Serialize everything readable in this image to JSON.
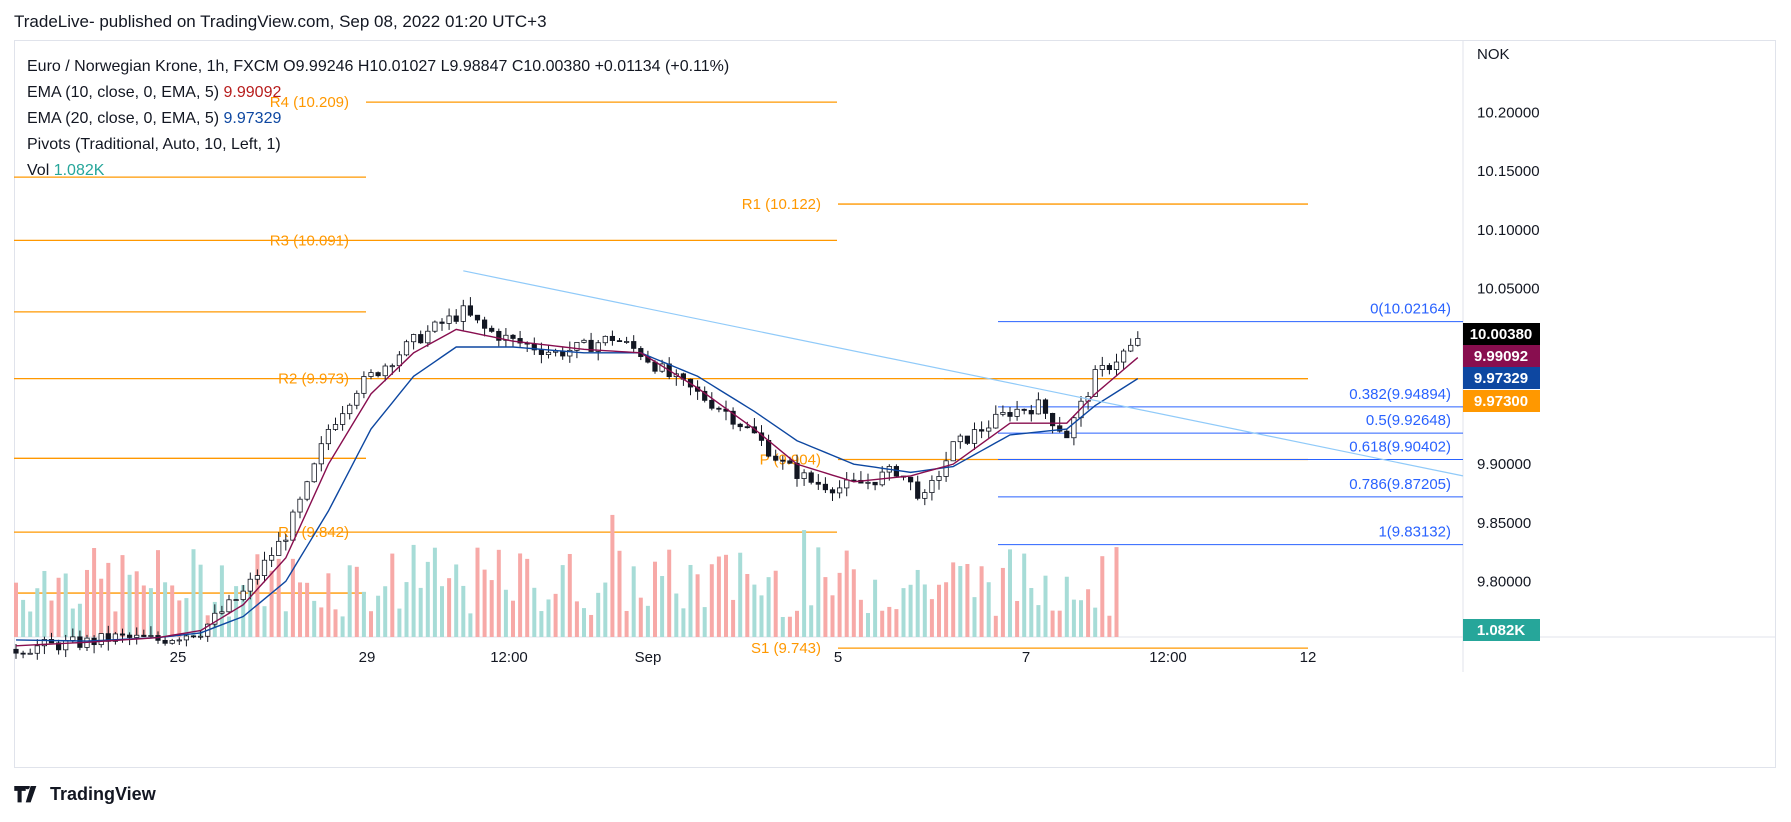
{
  "header": {
    "text": "TradeLive- published on TradingView.com, Sep 08, 2022 01:20 UTC+3"
  },
  "legend": {
    "symbol": "Euro / Norwegian Krone, 1h, FXCM",
    "open_label": "O",
    "open": "9.99246",
    "high_label": "H",
    "high": "10.01027",
    "low_label": "L",
    "low": "9.98847",
    "close_label": "C",
    "close": "10.00380",
    "change": "+0.01134 (+0.11%)",
    "ema10_label": "EMA (10, close, 0, EMA, 5)",
    "ema10_value": "9.99092",
    "ema20_label": "EMA (20, close, 0, EMA, 5)",
    "ema20_value": "9.97329",
    "pivots_label": "Pivots (Traditional, Auto, 10, Left, 1)",
    "vol_label": "Vol",
    "vol_value": "1.082K"
  },
  "footer": {
    "brand": "TradingView"
  },
  "colors": {
    "up": "#26a69a",
    "down": "#ef5350",
    "vol_up": "#a7dcd7",
    "vol_down": "#f7a9a7",
    "pivot": "#ff9800",
    "fib": "#2962ff",
    "ema10": "#880e4f",
    "ema20": "#0d47a1",
    "trend": "#90caf9",
    "axis_text": "#131722"
  },
  "chart_data": {
    "type": "candlestick",
    "currency": "NOK",
    "ylim": [
      9.7525,
      10.262
    ],
    "y_ticks": [
      "10.20000",
      "10.15000",
      "10.10000",
      "10.05000",
      "10.00000",
      "9.95000",
      "9.90000",
      "9.85000",
      "9.80000"
    ],
    "x_labels": [
      "25",
      "29",
      "12:00",
      "Sep",
      "5",
      "7",
      "12:00",
      "12"
    ],
    "price_tags": [
      {
        "text": "10.00380",
        "value": 10.0038,
        "style": "last"
      },
      {
        "text": "9.99092",
        "value": 9.99092,
        "style": "ema10"
      },
      {
        "text": "9.97329",
        "value": 9.97329,
        "style": "ema20"
      },
      {
        "text": "9.97300",
        "value": 9.973,
        "style": "pivot"
      },
      {
        "text": "1.082K",
        "style": "vol"
      }
    ],
    "pivot_levels": [
      {
        "label": "R4 (10.209)",
        "value": 10.209
      },
      {
        "label": "R3 (10.091)",
        "value": 10.091
      },
      {
        "label": "R2 (9.973)",
        "value": 9.973
      },
      {
        "label": "R1 (9.842)",
        "value": 9.842
      },
      {
        "label": "R1 (10.122)",
        "value": 10.122
      },
      {
        "label": "P (9.904)",
        "value": 9.904
      },
      {
        "label": "S1 (9.743)",
        "value": 9.743
      }
    ],
    "fib_levels": [
      {
        "label": "0(10.02164)",
        "value": 10.02164
      },
      {
        "label": "0.382(9.94894)",
        "value": 9.94894
      },
      {
        "label": "0.5(9.92648)",
        "value": 9.92648
      },
      {
        "label": "0.618(9.90402)",
        "value": 9.90402
      },
      {
        "label": "0.786(9.87205)",
        "value": 9.87205
      },
      {
        "label": "1(9.83132)",
        "value": 9.83132
      }
    ],
    "close_path": [
      [
        0,
        9.742
      ],
      [
        4,
        9.745
      ],
      [
        10,
        9.748
      ],
      [
        14,
        9.752
      ],
      [
        20,
        9.75
      ],
      [
        26,
        9.758
      ],
      [
        32,
        9.79
      ],
      [
        38,
        9.84
      ],
      [
        41,
        9.88
      ],
      [
        44,
        9.93
      ],
      [
        48,
        9.965
      ],
      [
        52,
        9.985
      ],
      [
        56,
        10.005
      ],
      [
        60,
        10.02
      ],
      [
        63,
        10.03
      ],
      [
        66,
        10.015
      ],
      [
        70,
        10.005
      ],
      [
        76,
        9.995
      ],
      [
        80,
        10.0
      ],
      [
        84,
        10.008
      ],
      [
        88,
        9.995
      ],
      [
        92,
        9.975
      ],
      [
        96,
        9.96
      ],
      [
        100,
        9.945
      ],
      [
        104,
        9.925
      ],
      [
        108,
        9.9
      ],
      [
        112,
        9.885
      ],
      [
        116,
        9.88
      ],
      [
        120,
        9.885
      ],
      [
        124,
        9.895
      ],
      [
        128,
        9.87
      ],
      [
        132,
        9.915
      ],
      [
        136,
        9.93
      ],
      [
        140,
        9.945
      ],
      [
        144,
        9.95
      ],
      [
        148,
        9.925
      ],
      [
        152,
        9.975
      ],
      [
        156,
        9.995
      ],
      [
        158,
        10.004
      ]
    ],
    "ema10_path": [
      [
        0,
        9.745
      ],
      [
        10,
        9.748
      ],
      [
        20,
        9.752
      ],
      [
        26,
        9.758
      ],
      [
        32,
        9.78
      ],
      [
        38,
        9.82
      ],
      [
        44,
        9.9
      ],
      [
        50,
        9.96
      ],
      [
        56,
        9.995
      ],
      [
        62,
        10.015
      ],
      [
        70,
        10.005
      ],
      [
        80,
        9.998
      ],
      [
        88,
        9.995
      ],
      [
        96,
        9.965
      ],
      [
        104,
        9.93
      ],
      [
        110,
        9.9
      ],
      [
        118,
        9.885
      ],
      [
        126,
        9.89
      ],
      [
        132,
        9.9
      ],
      [
        140,
        9.935
      ],
      [
        148,
        9.935
      ],
      [
        152,
        9.96
      ],
      [
        158,
        9.991
      ]
    ],
    "ema20_path": [
      [
        0,
        9.75
      ],
      [
        10,
        9.749
      ],
      [
        20,
        9.752
      ],
      [
        26,
        9.756
      ],
      [
        32,
        9.77
      ],
      [
        38,
        9.8
      ],
      [
        44,
        9.86
      ],
      [
        50,
        9.93
      ],
      [
        56,
        9.975
      ],
      [
        62,
        10.0
      ],
      [
        70,
        10.0
      ],
      [
        80,
        9.995
      ],
      [
        88,
        9.995
      ],
      [
        96,
        9.975
      ],
      [
        104,
        9.945
      ],
      [
        110,
        9.92
      ],
      [
        118,
        9.9
      ],
      [
        126,
        9.893
      ],
      [
        132,
        9.898
      ],
      [
        140,
        9.925
      ],
      [
        148,
        9.93
      ],
      [
        152,
        9.95
      ],
      [
        158,
        9.973
      ]
    ],
    "trendline": {
      "from": [
        63,
        10.065
      ],
      "to": [
        200,
        9.89
      ]
    }
  }
}
